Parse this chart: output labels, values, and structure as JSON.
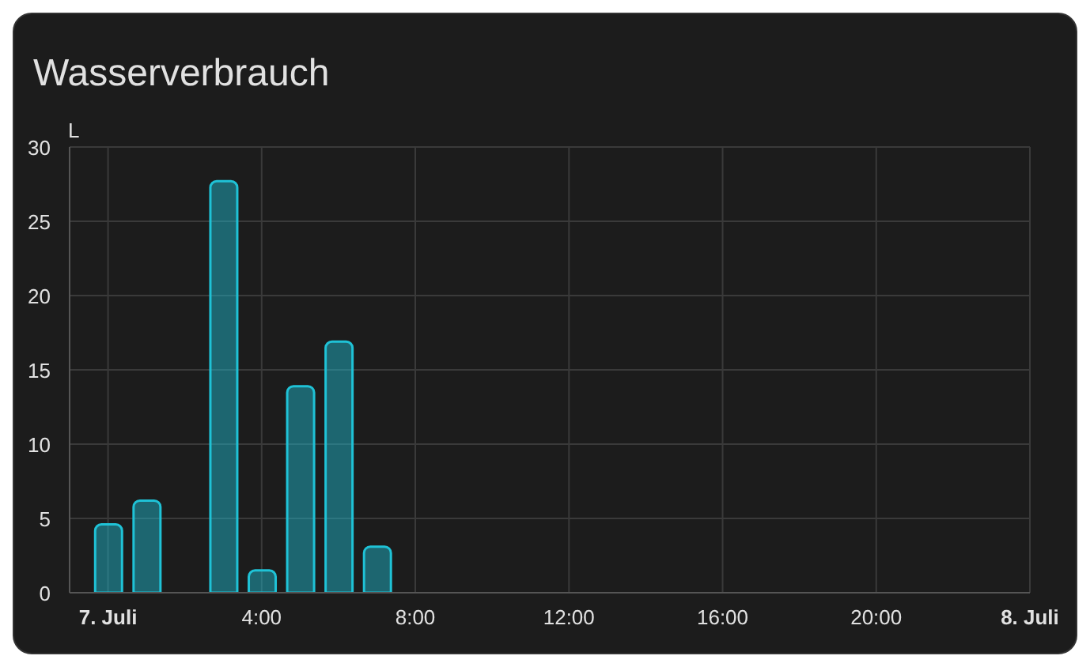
{
  "chart_data": {
    "type": "bar",
    "title": "Wasserverbrauch",
    "ylabel": "L",
    "x": [
      0,
      1,
      3,
      4,
      5,
      6,
      7
    ],
    "values": [
      4.6,
      6.2,
      27.7,
      1.5,
      13.9,
      16.9,
      3.1
    ],
    "color": "#1fc2d6",
    "xlim": [
      -1,
      24
    ],
    "xticks": [
      {
        "value": 0,
        "label": "7. Juli"
      },
      {
        "value": 4,
        "label": "4:00"
      },
      {
        "value": 8,
        "label": "8:00"
      },
      {
        "value": 12,
        "label": "12:00"
      },
      {
        "value": 16,
        "label": "16:00"
      },
      {
        "value": 20,
        "label": "20:00"
      },
      {
        "value": 24,
        "label": "8. Juli"
      }
    ],
    "ylim": [
      0,
      30
    ],
    "yticks": [
      0,
      5,
      10,
      15,
      20,
      25,
      30
    ],
    "grid": true
  }
}
